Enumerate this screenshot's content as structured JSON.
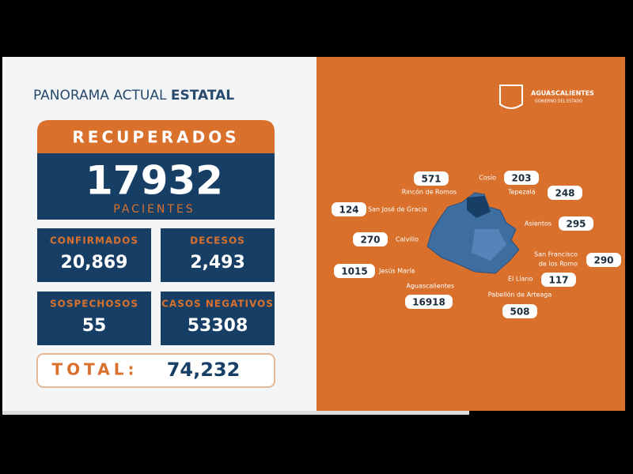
{
  "header": {
    "title_light": "PANORAMA ACTUAL",
    "title_bold": "ESTATAL"
  },
  "recuperados": {
    "label": "RECUPERADOS",
    "value": "17932",
    "unit": "PACIENTES"
  },
  "stats": [
    {
      "label": "CONFIRMADOS",
      "value": "20,869"
    },
    {
      "label": "DECESOS",
      "value": "2,493"
    },
    {
      "label": "SOSPECHOSOS",
      "value": "55"
    },
    {
      "label": "CASOS NEGATIVOS",
      "value": "53308"
    }
  ],
  "total": {
    "label": "TOTAL:",
    "value": "74,232"
  },
  "logo": {
    "name": "AGUASCALIENTES",
    "subtitle": "GOBIERNO DEL ESTADO"
  },
  "municipalities": [
    {
      "name": [
        "Cosío"
      ],
      "value": "203"
    },
    {
      "name": [
        "Rincón de Romos"
      ],
      "value": "571"
    },
    {
      "name": [
        "Tepezalá"
      ],
      "value": "248"
    },
    {
      "name": [
        "San José de Gracia"
      ],
      "value": "124"
    },
    {
      "name": [
        "Asientos"
      ],
      "value": "295"
    },
    {
      "name": [
        "Calvillo"
      ],
      "value": "270"
    },
    {
      "name": [
        "San Francisco",
        "de los Romo"
      ],
      "value": "290"
    },
    {
      "name": [
        "Jesús María"
      ],
      "value": "1015"
    },
    {
      "name": [
        "El Llano"
      ],
      "value": "117"
    },
    {
      "name": [
        "Aguascalientes"
      ],
      "value": "16918"
    },
    {
      "name": [
        "Pabellón de Arteaga"
      ],
      "value": "508"
    }
  ]
}
